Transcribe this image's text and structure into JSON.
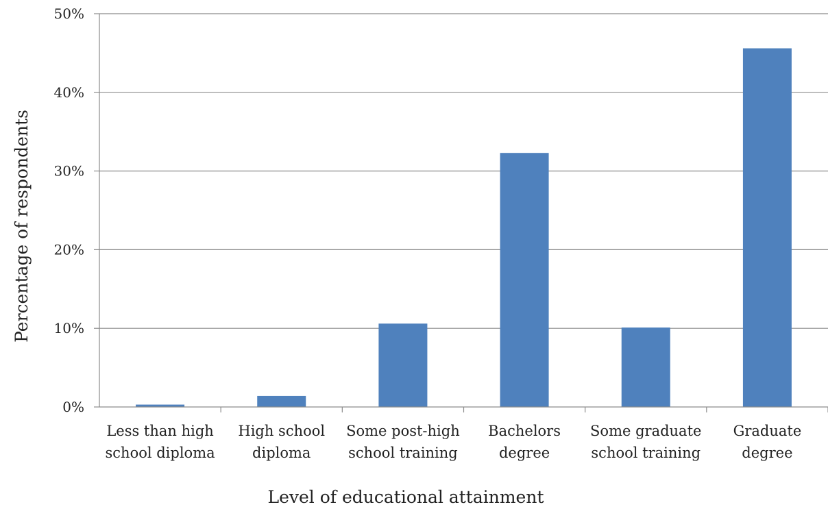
{
  "chart_data": {
    "type": "bar",
    "title": "",
    "xlabel": "Level of educational attainment",
    "ylabel": "Percentage of respondents",
    "categories": [
      [
        "Less than high",
        "school diploma"
      ],
      [
        "High school",
        "diploma"
      ],
      [
        "Some post-high",
        "school training"
      ],
      [
        "Bachelors",
        "degree"
      ],
      [
        "Some graduate",
        "school training"
      ],
      [
        "Graduate",
        "degree"
      ]
    ],
    "values": [
      0.3,
      1.4,
      10.6,
      32.3,
      10.1,
      45.6
    ],
    "ylim": [
      0,
      50
    ],
    "yticks": [
      0,
      10,
      20,
      30,
      40,
      50
    ],
    "ytick_labels": [
      "0%",
      "10%",
      "20%",
      "30%",
      "40%",
      "50%"
    ],
    "grid": true,
    "legend": "none",
    "bar_color": "#4f81bd",
    "grid_color": "#8c8c8c"
  }
}
